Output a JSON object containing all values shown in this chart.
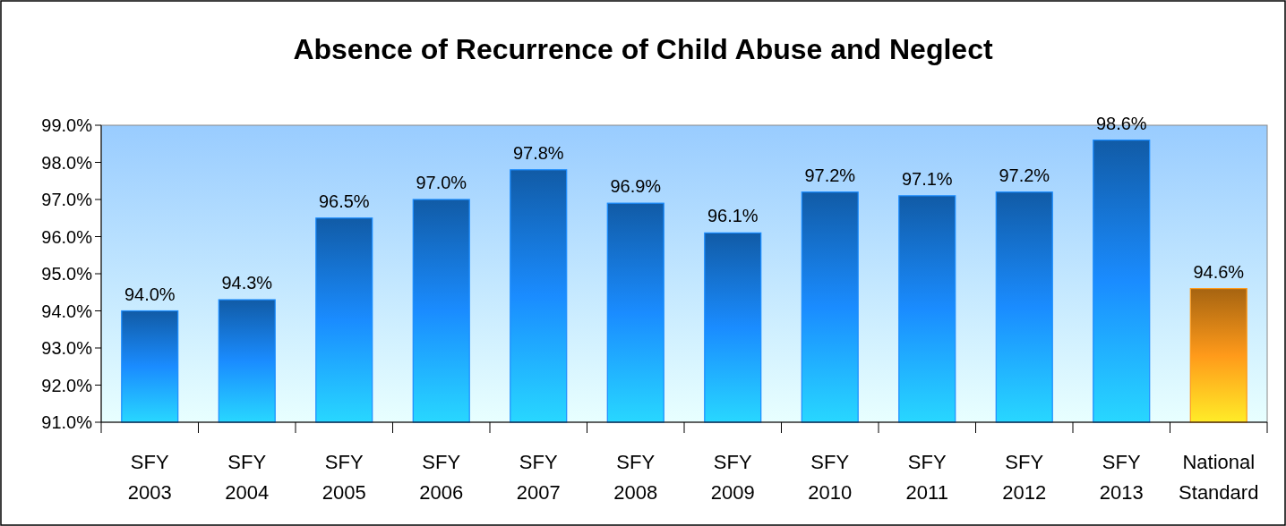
{
  "chart_data": {
    "type": "bar",
    "title": "Absence of Recurrence of Child Abuse and Neglect",
    "categories": [
      "SFY 2003",
      "SFY 2004",
      "SFY 2005",
      "SFY 2006",
      "SFY 2007",
      "SFY 2008",
      "SFY 2009",
      "SFY 2010",
      "SFY 2011",
      "SFY 2012",
      "SFY 2013",
      "National Standard"
    ],
    "values": [
      94.0,
      94.3,
      96.5,
      97.0,
      97.8,
      96.9,
      96.1,
      97.2,
      97.1,
      97.2,
      98.6,
      94.6
    ],
    "colors": [
      "#1a8cff",
      "#1a8cff",
      "#1a8cff",
      "#1a8cff",
      "#1a8cff",
      "#1a8cff",
      "#1a8cff",
      "#1a8cff",
      "#1a8cff",
      "#1a8cff",
      "#1a8cff",
      "#ff9a1a"
    ],
    "value_labels": [
      "94.0%",
      "94.3%",
      "96.5%",
      "97.0%",
      "97.8%",
      "96.9%",
      "96.1%",
      "97.2%",
      "97.1%",
      "97.2%",
      "98.6%",
      "94.6%"
    ],
    "ylim": [
      91,
      99
    ],
    "yticks": [
      {
        "value": 91,
        "label": "91.0%"
      },
      {
        "value": 92,
        "label": "92.0%"
      },
      {
        "value": 93,
        "label": "93.0%"
      },
      {
        "value": 94,
        "label": "94.0%"
      },
      {
        "value": 95,
        "label": "95.0%"
      },
      {
        "value": 96,
        "label": "96.0%"
      },
      {
        "value": 97,
        "label": "97.0%"
      },
      {
        "value": 98,
        "label": "98.0%"
      },
      {
        "value": 99,
        "label": "99.0%"
      }
    ],
    "grid": false
  }
}
